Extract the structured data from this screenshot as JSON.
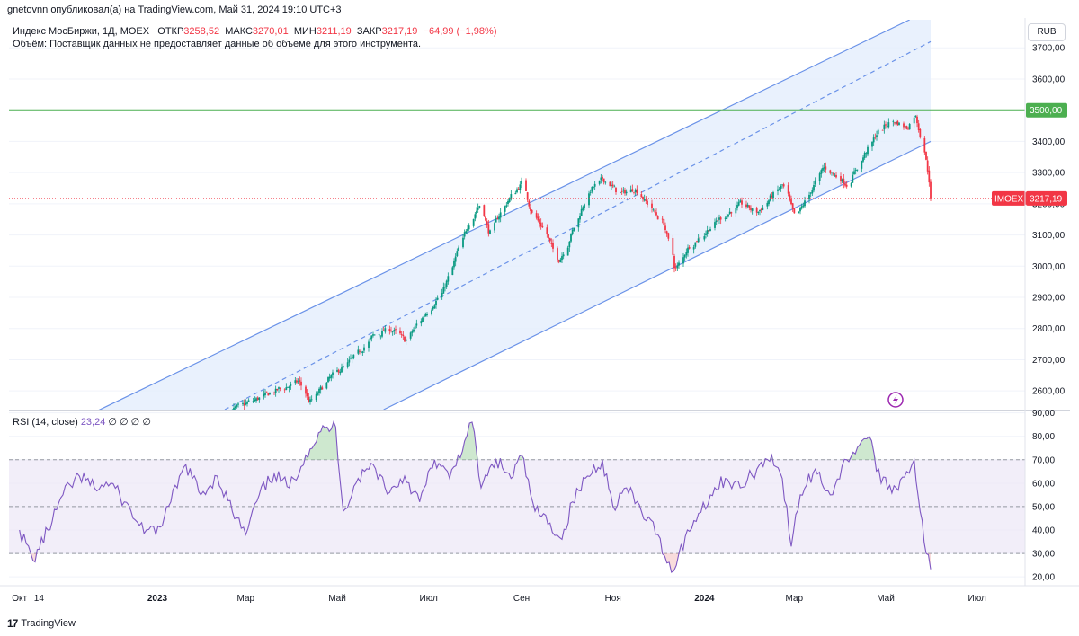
{
  "top_line": "gnetovnn опубликовал(а) на TradingView.com, Май 31, 2024 19:10 UTC+3",
  "header": {
    "symbol": "Индекс МосБиржи, 1Д, MOEX",
    "open_label": "ОТКР",
    "open_value": "3258,52",
    "high_label": "МАКС",
    "high_value": "3270,01",
    "low_label": "МИН",
    "low_value": "3211,19",
    "close_label": "ЗАКР",
    "close_value": "3217,19",
    "change": "−64,99 (−1,98%)",
    "volume_note": "Объём: Поставщик данных не предоставляет данные об объеме для этого инструмента."
  },
  "currency": "RUB",
  "price_axis": {
    "ticks": [
      "3700,00",
      "3600,00",
      "3500,00",
      "3400,00",
      "3300,00",
      "3200,00",
      "3100,00",
      "3000,00",
      "2900,00",
      "2800,00",
      "2700,00",
      "2600,00"
    ],
    "tick_values": [
      3700,
      3600,
      3500,
      3400,
      3300,
      3200,
      3100,
      3000,
      2900,
      2800,
      2700,
      2600
    ],
    "level_label": "3500,00",
    "level_value": 3500,
    "last_symbol": "IMOEX",
    "last_price": "3217,19",
    "last_value": 3217.19
  },
  "rsi": {
    "label": "RSI (14, close)",
    "value": "23,24",
    "extras": "∅ ∅ ∅ ∅",
    "ticks": [
      "90,00",
      "80,00",
      "70,00",
      "60,00",
      "50,00",
      "40,00",
      "30,00",
      "20,00"
    ],
    "tick_values": [
      90,
      80,
      70,
      60,
      50,
      40,
      30,
      20
    ],
    "upper_band": 70,
    "middle_band": 50,
    "lower_band": 30
  },
  "time_axis": [
    "Окт",
    "14",
    "2023",
    "Мар",
    "Май",
    "Июл",
    "Сен",
    "Ноя",
    "2024",
    "Мар",
    "Май",
    "Июл"
  ],
  "footer": {
    "brand": "TradingView"
  },
  "colors": {
    "up": "#089981",
    "down": "#f23645",
    "channel": "#6a92e8",
    "channel_fill": "#e3eefc",
    "level": "#4caf50",
    "rsi_line": "#7e57c2",
    "rsi_band": "#ede7f6",
    "grid": "#f0f3fa"
  },
  "chart_data": [
    {
      "type": "candlestick",
      "title": "Индекс МосБиржи, 1Д, MOEX",
      "x_range": [
        "2022-10",
        "2024-07"
      ],
      "ylim": [
        2540,
        3790
      ],
      "price_series_anchors": [
        {
          "x": "2022-12-31",
          "y": 2410
        },
        {
          "x": "2023-01-20",
          "y": 2470
        },
        {
          "x": "2023-02-10",
          "y": 2520
        },
        {
          "x": "2023-03-01",
          "y": 2560
        },
        {
          "x": "2023-03-20",
          "y": 2600
        },
        {
          "x": "2023-04-05",
          "y": 2630
        },
        {
          "x": "2023-04-12",
          "y": 2560
        },
        {
          "x": "2023-04-25",
          "y": 2640
        },
        {
          "x": "2023-05-10",
          "y": 2700
        },
        {
          "x": "2023-05-25",
          "y": 2780
        },
        {
          "x": "2023-06-05",
          "y": 2800
        },
        {
          "x": "2023-06-15",
          "y": 2760
        },
        {
          "x": "2023-06-25",
          "y": 2830
        },
        {
          "x": "2023-07-10",
          "y": 2920
        },
        {
          "x": "2023-07-20",
          "y": 3050
        },
        {
          "x": "2023-07-28",
          "y": 3150
        },
        {
          "x": "2023-08-04",
          "y": 3200
        },
        {
          "x": "2023-08-10",
          "y": 3100
        },
        {
          "x": "2023-08-18",
          "y": 3180
        },
        {
          "x": "2023-08-25",
          "y": 3230
        },
        {
          "x": "2023-09-01",
          "y": 3270
        },
        {
          "x": "2023-09-08",
          "y": 3160
        },
        {
          "x": "2023-09-15",
          "y": 3120
        },
        {
          "x": "2023-09-25",
          "y": 3010
        },
        {
          "x": "2023-10-05",
          "y": 3120
        },
        {
          "x": "2023-10-15",
          "y": 3240
        },
        {
          "x": "2023-10-25",
          "y": 3280
        },
        {
          "x": "2023-11-05",
          "y": 3230
        },
        {
          "x": "2023-11-15",
          "y": 3250
        },
        {
          "x": "2023-11-25",
          "y": 3190
        },
        {
          "x": "2023-12-05",
          "y": 3130
        },
        {
          "x": "2023-12-12",
          "y": 2980
        },
        {
          "x": "2023-12-20",
          "y": 3060
        },
        {
          "x": "2023-12-30",
          "y": 3100
        },
        {
          "x": "2024-01-10",
          "y": 3150
        },
        {
          "x": "2024-01-25",
          "y": 3200
        },
        {
          "x": "2024-02-05",
          "y": 3170
        },
        {
          "x": "2024-02-15",
          "y": 3230
        },
        {
          "x": "2024-02-22",
          "y": 3260
        },
        {
          "x": "2024-03-01",
          "y": 3150
        },
        {
          "x": "2024-03-10",
          "y": 3230
        },
        {
          "x": "2024-03-20",
          "y": 3320
        },
        {
          "x": "2024-03-28",
          "y": 3290
        },
        {
          "x": "2024-04-05",
          "y": 3260
        },
        {
          "x": "2024-04-15",
          "y": 3350
        },
        {
          "x": "2024-04-25",
          "y": 3430
        },
        {
          "x": "2024-05-05",
          "y": 3470
        },
        {
          "x": "2024-05-15",
          "y": 3440
        },
        {
          "x": "2024-05-20",
          "y": 3500
        },
        {
          "x": "2024-05-23",
          "y": 3430
        },
        {
          "x": "2024-05-27",
          "y": 3340
        },
        {
          "x": "2024-05-29",
          "y": 3290
        },
        {
          "x": "2024-05-31",
          "y": 3217
        }
      ],
      "horizontal_level": 3500,
      "channel": {
        "upper": [
          {
            "x": "2022-11-15",
            "y": 2520
          },
          {
            "x": "2024-05-17",
            "y": 3790
          }
        ],
        "middle": [
          {
            "x": "2023-02-15",
            "y": 2540
          },
          {
            "x": "2024-05-31",
            "y": 3720
          }
        ],
        "lower": [
          {
            "x": "2023-06-01",
            "y": 2540
          },
          {
            "x": "2024-05-31",
            "y": 3400
          }
        ]
      },
      "last_price": 3217.19
    },
    {
      "type": "line",
      "title": "RSI (14, close)",
      "ylim": [
        17,
        91
      ],
      "bands": [
        30,
        50,
        70
      ],
      "series": [
        {
          "name": "RSI (14, close)",
          "points": [
            {
              "x": "2022-10-01",
              "y": 40
            },
            {
              "x": "2022-10-10",
              "y": 27
            },
            {
              "x": "2022-10-20",
              "y": 40
            },
            {
              "x": "2022-10-30",
              "y": 55
            },
            {
              "x": "2022-11-10",
              "y": 63
            },
            {
              "x": "2022-11-20",
              "y": 58
            },
            {
              "x": "2022-12-01",
              "y": 60
            },
            {
              "x": "2022-12-10",
              "y": 52
            },
            {
              "x": "2022-12-20",
              "y": 42
            },
            {
              "x": "2022-12-31",
              "y": 38
            },
            {
              "x": "2023-01-10",
              "y": 52
            },
            {
              "x": "2023-01-20",
              "y": 68
            },
            {
              "x": "2023-01-30",
              "y": 55
            },
            {
              "x": "2023-02-10",
              "y": 63
            },
            {
              "x": "2023-02-20",
              "y": 48
            },
            {
              "x": "2023-03-01",
              "y": 38
            },
            {
              "x": "2023-03-10",
              "y": 55
            },
            {
              "x": "2023-03-20",
              "y": 64
            },
            {
              "x": "2023-03-30",
              "y": 58
            },
            {
              "x": "2023-04-10",
              "y": 72
            },
            {
              "x": "2023-04-20",
              "y": 82
            },
            {
              "x": "2023-04-30",
              "y": 84
            },
            {
              "x": "2023-05-05",
              "y": 48
            },
            {
              "x": "2023-05-15",
              "y": 62
            },
            {
              "x": "2023-05-25",
              "y": 68
            },
            {
              "x": "2023-06-05",
              "y": 56
            },
            {
              "x": "2023-06-15",
              "y": 63
            },
            {
              "x": "2023-06-25",
              "y": 52
            },
            {
              "x": "2023-07-05",
              "y": 70
            },
            {
              "x": "2023-07-15",
              "y": 62
            },
            {
              "x": "2023-07-25",
              "y": 78
            },
            {
              "x": "2023-07-30",
              "y": 86
            },
            {
              "x": "2023-08-05",
              "y": 58
            },
            {
              "x": "2023-08-15",
              "y": 70
            },
            {
              "x": "2023-08-25",
              "y": 62
            },
            {
              "x": "2023-09-01",
              "y": 72
            },
            {
              "x": "2023-09-10",
              "y": 48
            },
            {
              "x": "2023-09-20",
              "y": 43
            },
            {
              "x": "2023-09-28",
              "y": 36
            },
            {
              "x": "2023-10-05",
              "y": 52
            },
            {
              "x": "2023-10-15",
              "y": 63
            },
            {
              "x": "2023-10-25",
              "y": 70
            },
            {
              "x": "2023-11-01",
              "y": 50
            },
            {
              "x": "2023-11-10",
              "y": 58
            },
            {
              "x": "2023-11-20",
              "y": 48
            },
            {
              "x": "2023-12-01",
              "y": 38
            },
            {
              "x": "2023-12-10",
              "y": 22
            },
            {
              "x": "2023-12-15",
              "y": 30
            },
            {
              "x": "2023-12-25",
              "y": 44
            },
            {
              "x": "2024-01-05",
              "y": 55
            },
            {
              "x": "2024-01-15",
              "y": 62
            },
            {
              "x": "2024-01-25",
              "y": 58
            },
            {
              "x": "2024-02-05",
              "y": 66
            },
            {
              "x": "2024-02-15",
              "y": 72
            },
            {
              "x": "2024-02-22",
              "y": 62
            },
            {
              "x": "2024-02-28",
              "y": 33
            },
            {
              "x": "2024-03-05",
              "y": 55
            },
            {
              "x": "2024-03-15",
              "y": 66
            },
            {
              "x": "2024-03-25",
              "y": 55
            },
            {
              "x": "2024-04-05",
              "y": 70
            },
            {
              "x": "2024-04-15",
              "y": 78
            },
            {
              "x": "2024-04-20",
              "y": 80
            },
            {
              "x": "2024-04-28",
              "y": 60
            },
            {
              "x": "2024-05-08",
              "y": 58
            },
            {
              "x": "2024-05-15",
              "y": 65
            },
            {
              "x": "2024-05-20",
              "y": 70
            },
            {
              "x": "2024-05-24",
              "y": 48
            },
            {
              "x": "2024-05-28",
              "y": 30
            },
            {
              "x": "2024-05-31",
              "y": 23.24
            }
          ]
        }
      ]
    }
  ]
}
